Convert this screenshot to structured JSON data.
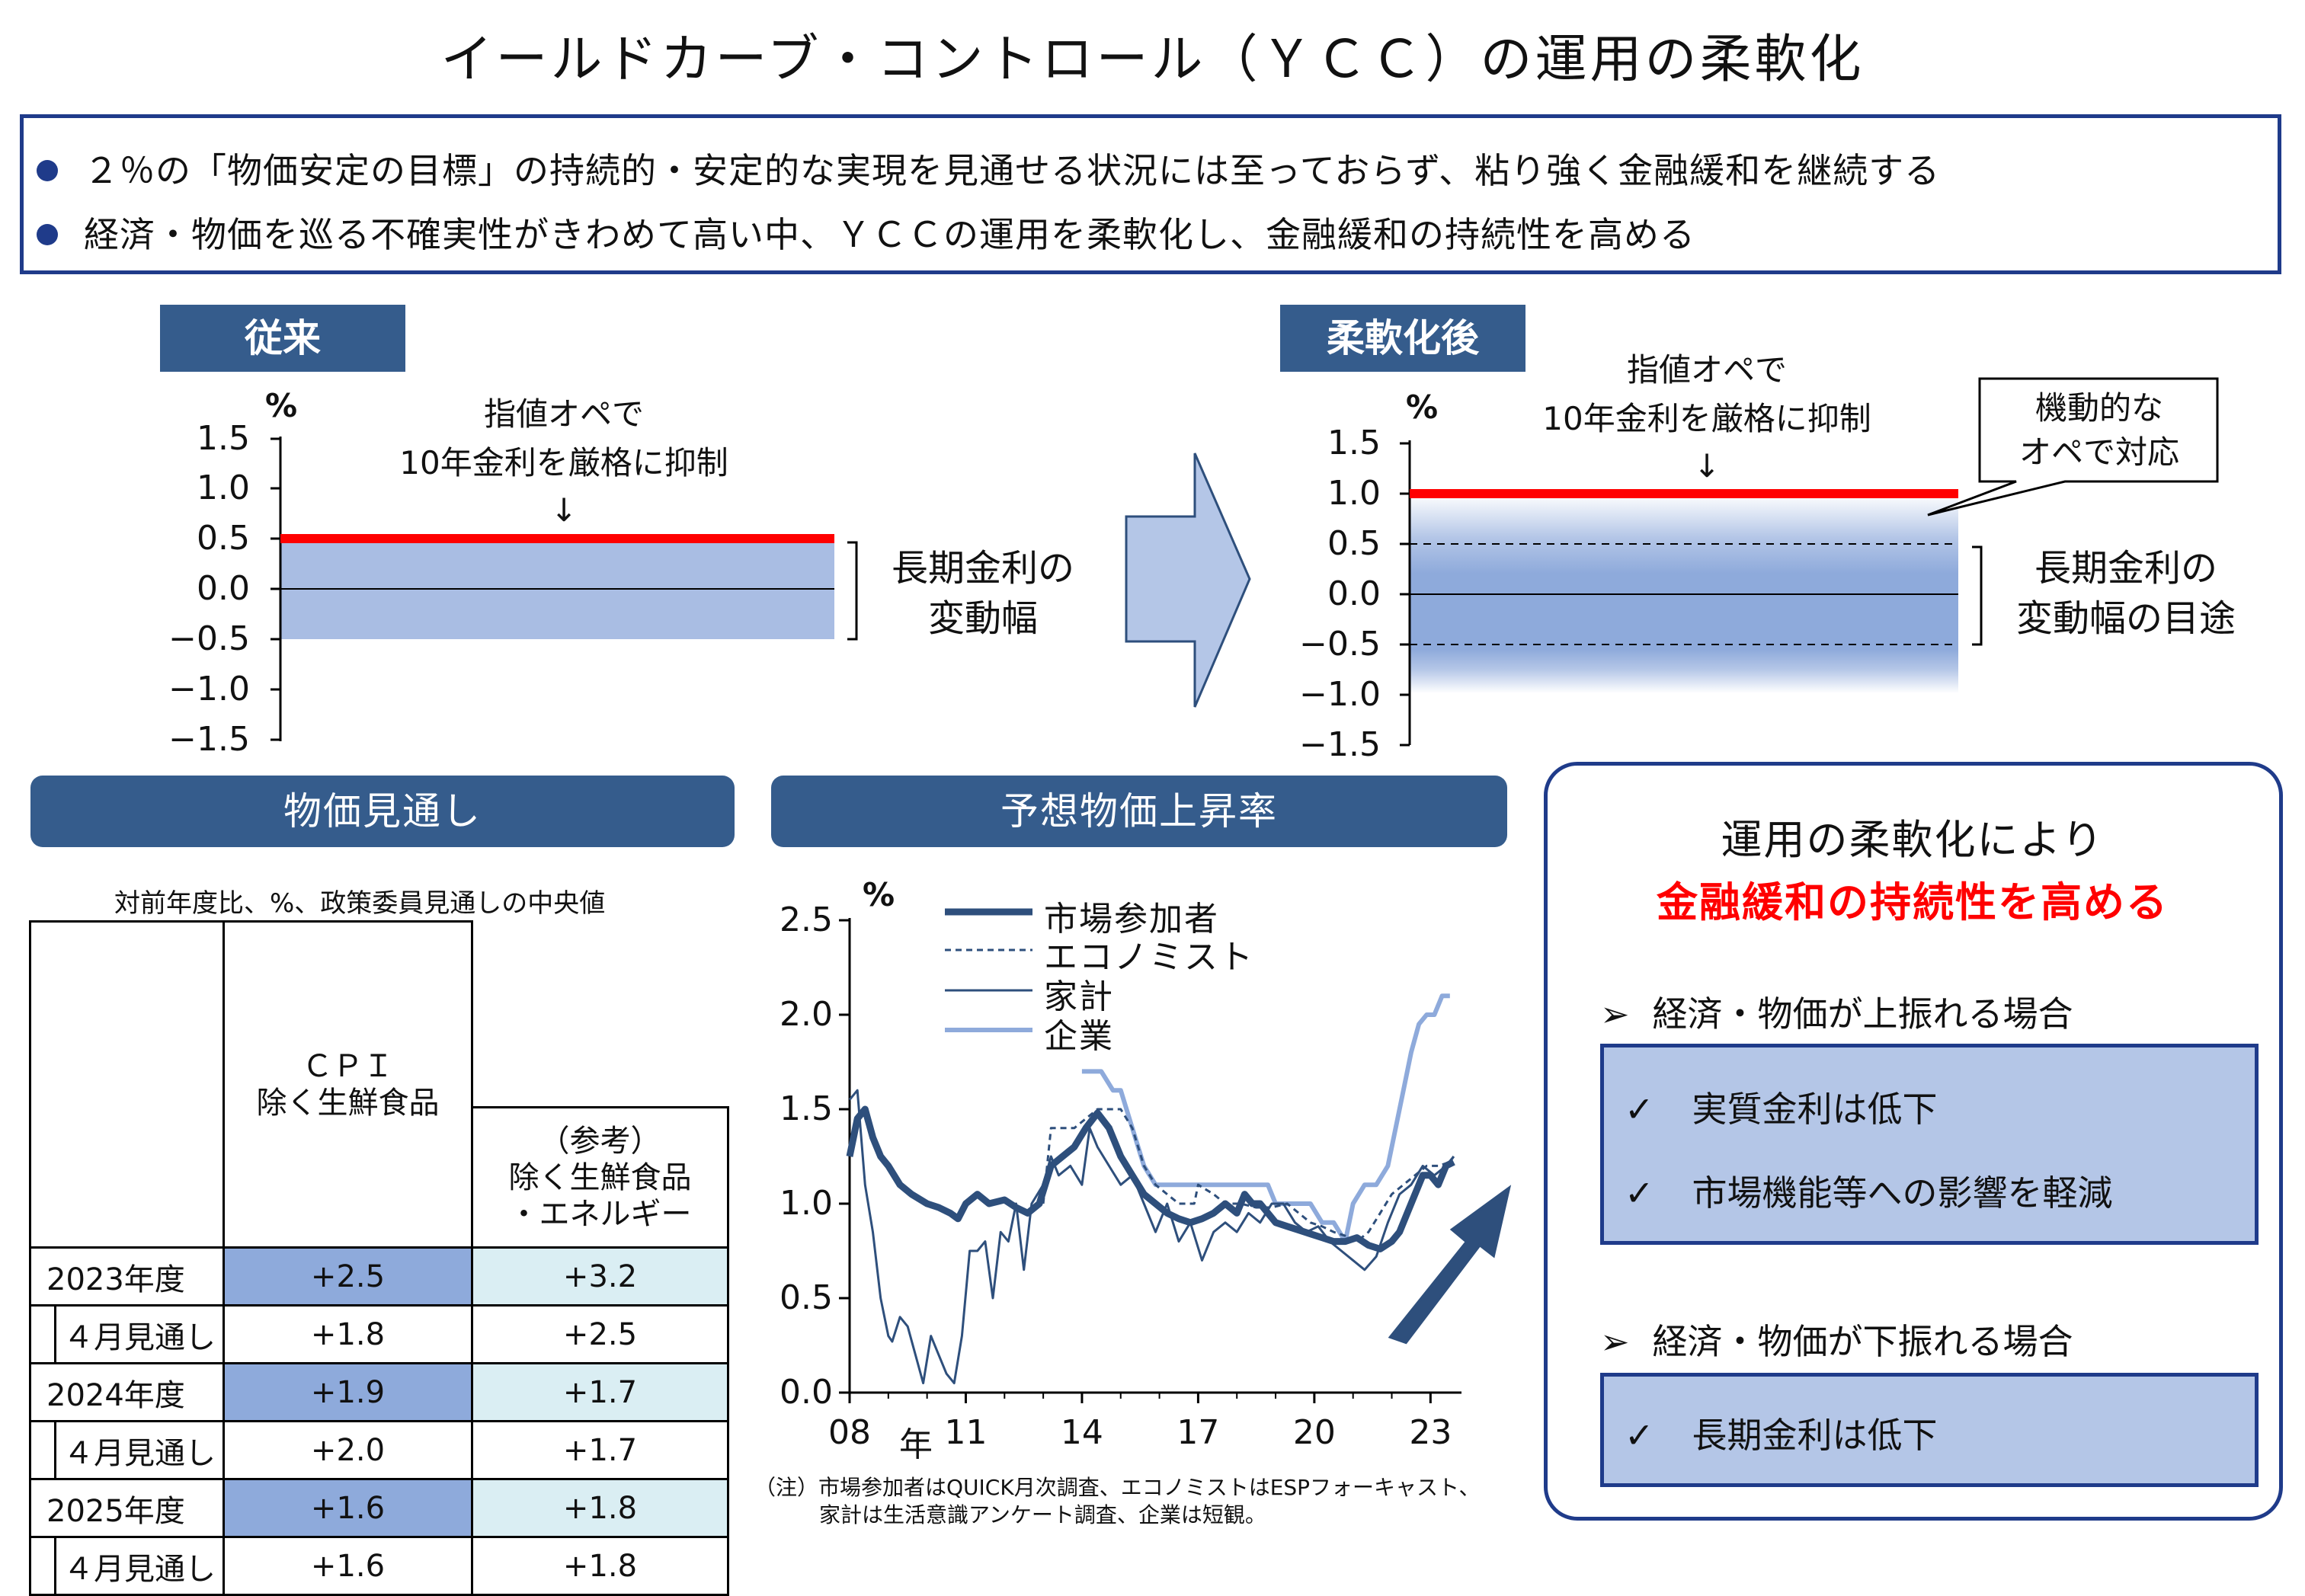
{
  "title": "イールドカーブ・コントロール（ＹＣＣ）の運用の柔軟化",
  "summary": {
    "bullets": [
      "２％の「物価安定の目標」の持続的・安定的な実現を見通せる状況には至っておらず、粘り強く金融緩和を継続する",
      "経済・物価を巡る不確実性がきわめて高い中、ＹＣＣの運用を柔軟化し、金融緩和の持続性を高める"
    ]
  },
  "before": {
    "header": "従来",
    "unit": "%",
    "yticks": [
      "1.5",
      "1.0",
      "0.5",
      "0.0",
      "−0.5",
      "−1.0",
      "−1.5"
    ],
    "annotation_line1": "指値オペで",
    "annotation_line2": "10年金利を厳格に抑制",
    "arrow": "↓",
    "band_label_line1": "長期金利の",
    "band_label_line2": "変動幅",
    "cap": 0.5,
    "band": [
      -0.5,
      0.5
    ]
  },
  "after": {
    "header": "柔軟化後",
    "unit": "%",
    "yticks": [
      "1.5",
      "1.0",
      "0.5",
      "0.0",
      "−0.5",
      "−1.0",
      "−1.5"
    ],
    "annotation_line1": "指値オペで",
    "annotation_line2": "10年金利を厳格に抑制",
    "arrow": "↓",
    "callout_line1": "機動的な",
    "callout_line2": "オペで対応",
    "band_label_line1": "長期金利の",
    "band_label_line2": "変動幅の目途",
    "cap": 1.0,
    "band": [
      -0.5,
      0.5
    ]
  },
  "forecast": {
    "header": "物価見通し",
    "caption": "対前年度比、%、政策委員見通しの中央値",
    "col1_line1": "ＣＰＩ",
    "col1_line2": "除く生鮮食品",
    "col2_line1": "（参考）",
    "col2_line2": "除く生鮮食品",
    "col2_line3": "・エネルギー",
    "rows": [
      {
        "label": "2023年度",
        "cpi": "+2.5",
        "core": "+3.2"
      },
      {
        "label": "４月見通し",
        "cpi": "+1.8",
        "core": "+2.5"
      },
      {
        "label": "2024年度",
        "cpi": "+1.9",
        "core": "+1.7"
      },
      {
        "label": "４月見通し",
        "cpi": "+2.0",
        "core": "+1.7"
      },
      {
        "label": "2025年度",
        "cpi": "+1.6",
        "core": "+1.8"
      },
      {
        "label": "４月見通し",
        "cpi": "+1.6",
        "core": "+1.8"
      }
    ]
  },
  "expect": {
    "header": "予想物価上昇率",
    "unit": "%",
    "xunit": "年",
    "note_line1": "（注）市場参加者はQUICK月次調査、エコノミストはESPフォーキャスト、",
    "note_line2": "家計は生活意識アンケート調査、企業は短観。"
  },
  "chart_data": {
    "type": "line",
    "title": "予想物価上昇率",
    "ylabel": "%",
    "xlabel": "年",
    "ylim": [
      0.0,
      2.5
    ],
    "xlim": [
      2008.0,
      2023.8
    ],
    "yticks": [
      "0.0",
      "0.5",
      "1.0",
      "1.5",
      "2.0",
      "2.5"
    ],
    "xticks": [
      {
        "label": "08",
        "x": 2008
      },
      {
        "label": "11",
        "x": 2011
      },
      {
        "label": "14",
        "x": 2014
      },
      {
        "label": "17",
        "x": 2017
      },
      {
        "label": "20",
        "x": 2020
      },
      {
        "label": "23",
        "x": 2023
      }
    ],
    "legend_position": "top-left",
    "series": [
      {
        "name": "市場参加者",
        "color": "#2e4f7c",
        "style": "thick",
        "x": [
          2008.0,
          2008.2,
          2008.4,
          2008.6,
          2008.8,
          2009.0,
          2009.3,
          2009.6,
          2010.0,
          2010.3,
          2010.6,
          2010.8,
          2011.0,
          2011.3,
          2011.6,
          2012.0,
          2012.3,
          2012.6,
          2012.9,
          2013.2,
          2013.5,
          2013.8,
          2014.1,
          2014.4,
          2014.7,
          2015.0,
          2015.3,
          2015.6,
          2015.9,
          2016.2,
          2016.5,
          2016.8,
          2017.1,
          2017.4,
          2017.7,
          2018.0,
          2018.2,
          2018.4,
          2018.6,
          2018.8,
          2019.0,
          2019.3,
          2019.6,
          2019.9,
          2020.2,
          2020.5,
          2020.8,
          2021.1,
          2021.4,
          2021.7,
          2022.0,
          2022.2,
          2022.4,
          2022.6,
          2022.8,
          2023.0,
          2023.2,
          2023.4,
          2023.6
        ],
        "y": [
          1.25,
          1.45,
          1.5,
          1.35,
          1.25,
          1.2,
          1.1,
          1.05,
          1.0,
          0.98,
          0.95,
          0.92,
          1.0,
          1.05,
          1.0,
          1.02,
          0.98,
          0.95,
          1.0,
          1.2,
          1.25,
          1.3,
          1.4,
          1.48,
          1.4,
          1.25,
          1.15,
          1.05,
          1.0,
          0.95,
          0.92,
          0.9,
          0.92,
          0.95,
          1.0,
          0.95,
          1.05,
          1.0,
          1.0,
          0.95,
          0.9,
          0.88,
          0.86,
          0.84,
          0.82,
          0.8,
          0.8,
          0.82,
          0.78,
          0.76,
          0.8,
          0.85,
          0.95,
          1.05,
          1.15,
          1.15,
          1.1,
          1.2,
          1.22
        ]
      },
      {
        "name": "エコノミスト",
        "color": "#2e4f7c",
        "style": "dashed",
        "x": [
          2013.0,
          2013.2,
          2013.4,
          2013.8,
          2014.1,
          2014.4,
          2014.7,
          2015.0,
          2015.3,
          2015.6,
          2015.9,
          2016.2,
          2016.5,
          2016.9,
          2017.0,
          2017.4,
          2017.7,
          2018.1,
          2018.5,
          2018.9,
          2019.3,
          2019.6,
          2019.9,
          2020.2,
          2020.5,
          2020.8,
          2021.1,
          2021.4,
          2021.7,
          2022.0,
          2022.3,
          2022.6,
          2022.9,
          2023.2,
          2023.5,
          2023.6
        ],
        "y": [
          1.0,
          1.4,
          1.4,
          1.4,
          1.45,
          1.5,
          1.5,
          1.5,
          1.4,
          1.2,
          1.1,
          1.05,
          1.0,
          1.0,
          1.1,
          1.05,
          1.0,
          1.0,
          0.98,
          0.98,
          1.0,
          0.95,
          0.9,
          0.88,
          0.85,
          0.83,
          0.8,
          0.85,
          0.95,
          1.05,
          1.1,
          1.15,
          1.2,
          1.2,
          1.22,
          1.25
        ]
      },
      {
        "name": "家計",
        "color": "#2e4f7c",
        "style": "thin",
        "x": [
          2008.0,
          2008.2,
          2008.4,
          2008.6,
          2008.8,
          2009.0,
          2009.1,
          2009.3,
          2009.5,
          2009.7,
          2009.9,
          2010.1,
          2010.3,
          2010.5,
          2010.7,
          2010.9,
          2011.1,
          2011.3,
          2011.5,
          2011.7,
          2011.9,
          2012.1,
          2012.3,
          2012.5,
          2012.7,
          2013.0,
          2013.2,
          2013.4,
          2013.7,
          2014.0,
          2014.2,
          2014.4,
          2014.7,
          2015.0,
          2015.3,
          2015.6,
          2015.9,
          2016.2,
          2016.5,
          2016.8,
          2017.1,
          2017.4,
          2017.7,
          2018.0,
          2018.3,
          2018.6,
          2018.9,
          2019.2,
          2019.5,
          2019.8,
          2020.1,
          2020.4,
          2020.7,
          2021.0,
          2021.3,
          2021.6,
          2021.9,
          2022.2,
          2022.5,
          2022.8,
          2023.1,
          2023.4,
          2023.6
        ],
        "y": [
          1.55,
          1.6,
          1.1,
          0.85,
          0.5,
          0.3,
          0.27,
          0.4,
          0.35,
          0.2,
          0.05,
          0.3,
          0.2,
          0.1,
          0.05,
          0.3,
          0.75,
          0.75,
          0.8,
          0.5,
          0.85,
          0.8,
          1.0,
          0.65,
          1.0,
          1.1,
          1.25,
          1.15,
          1.2,
          1.1,
          1.4,
          1.3,
          1.2,
          1.1,
          1.15,
          1.0,
          0.85,
          1.0,
          0.8,
          0.9,
          0.7,
          0.85,
          0.9,
          0.85,
          0.95,
          0.9,
          1.0,
          1.0,
          0.9,
          0.85,
          0.88,
          0.8,
          0.75,
          0.7,
          0.65,
          0.72,
          0.9,
          1.05,
          1.1,
          1.2,
          1.15,
          1.2,
          1.25
        ]
      },
      {
        "name": "企業",
        "color": "#8eaadb",
        "style": "light",
        "x": [
          2014.0,
          2014.5,
          2014.8,
          2015.0,
          2015.3,
          2015.6,
          2015.9,
          2016.2,
          2016.5,
          2016.8,
          2017.0,
          2017.5,
          2018.0,
          2018.5,
          2018.8,
          2019.0,
          2019.3,
          2019.6,
          2019.9,
          2020.2,
          2020.5,
          2020.8,
          2021.0,
          2021.3,
          2021.6,
          2021.9,
          2022.1,
          2022.3,
          2022.5,
          2022.7,
          2022.9,
          2023.1,
          2023.3,
          2023.5
        ],
        "y": [
          1.7,
          1.7,
          1.6,
          1.6,
          1.4,
          1.2,
          1.1,
          1.1,
          1.1,
          1.1,
          1.1,
          1.1,
          1.1,
          1.1,
          1.1,
          1.0,
          1.0,
          1.0,
          1.0,
          0.9,
          0.9,
          0.8,
          1.0,
          1.1,
          1.1,
          1.2,
          1.4,
          1.6,
          1.8,
          1.95,
          2.0,
          2.0,
          2.1,
          2.1
        ]
      }
    ]
  },
  "effect": {
    "title_line1": "運用の柔軟化により",
    "title_line2": "金融緩和の持続性を高める",
    "accent_color": "#ff0000",
    "case_up": "経済・物価が上振れる場合",
    "up_items": [
      "実質金利は低下",
      "市場機能等への影響を軽減"
    ],
    "case_down": "経済・物価が下振れる場合",
    "down_items": [
      "長期金利は低下"
    ],
    "case_marker": "➢",
    "check_marker": "✓"
  }
}
